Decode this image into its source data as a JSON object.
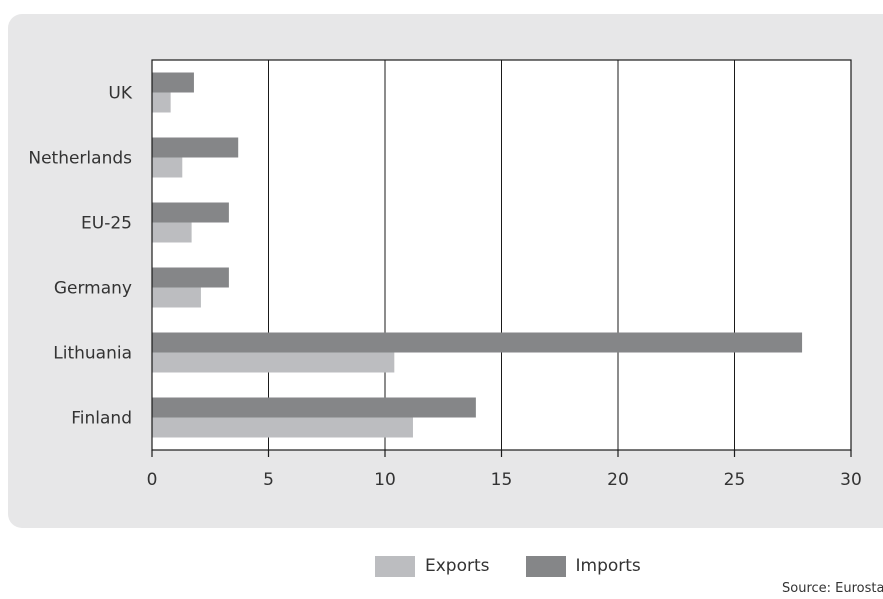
{
  "chart_data": {
    "type": "bar",
    "orientation": "horizontal",
    "categories": [
      "UK",
      "Netherlands",
      "EU-25",
      "Germany",
      "Lithuania",
      "Finland"
    ],
    "series": [
      {
        "name": "Imports",
        "color": "#858688",
        "values": [
          1.8,
          3.7,
          3.3,
          3.3,
          27.9,
          13.9
        ]
      },
      {
        "name": "Exports",
        "color": "#bcbdc0",
        "values": [
          0.8,
          1.3,
          1.7,
          2.1,
          10.4,
          11.2
        ]
      }
    ],
    "xlim": [
      0,
      30
    ],
    "xticks": [
      "0",
      "5",
      "10",
      "15",
      "20",
      "25",
      "30"
    ],
    "grid": true,
    "legend_position": "bottom"
  },
  "legend": {
    "exports_label": "Exports",
    "imports_label": "Imports",
    "exports_color": "#bcbdc0",
    "imports_color": "#858688"
  },
  "source": "Source: Eurosta"
}
